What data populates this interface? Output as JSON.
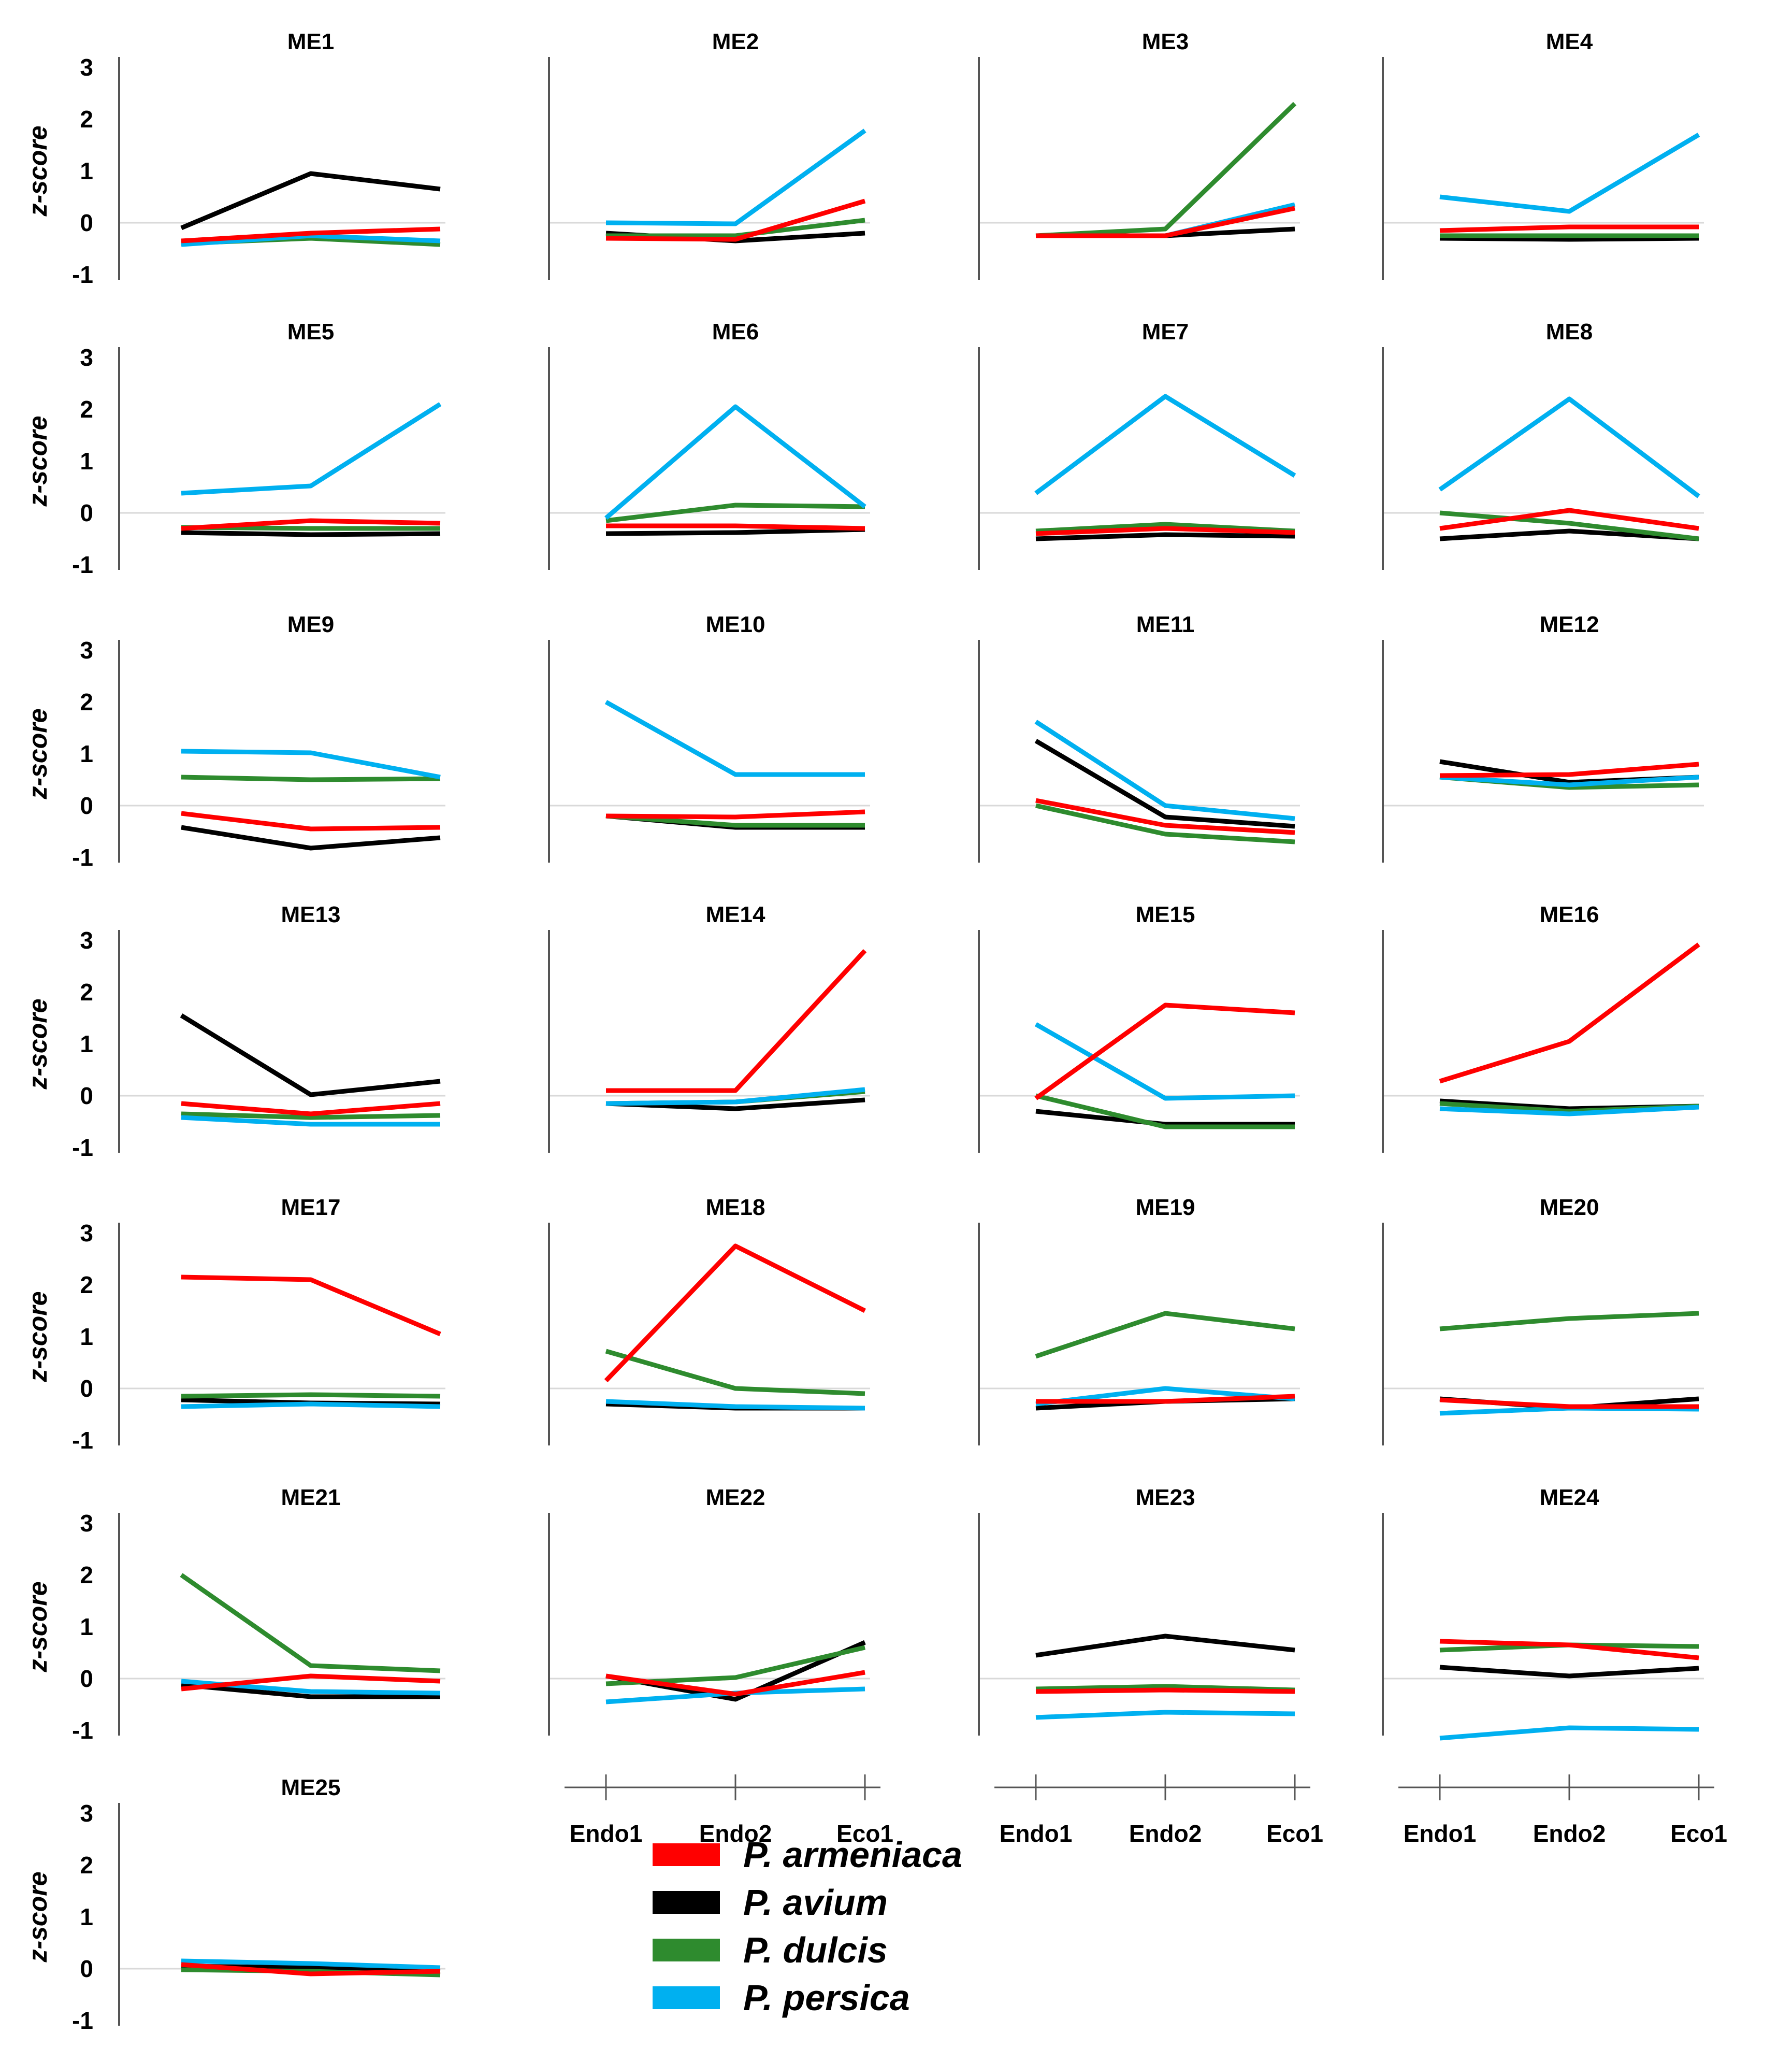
{
  "colors": {
    "P. armeniaca": "#ff0000",
    "P. avium": "#000000",
    "P. dulcis": "#2e8b2e",
    "P. persica": "#00b0f0",
    "zero_line": "#d9d9d9",
    "axis": "#555555"
  },
  "chart_data": {
    "type": "line",
    "ylabel": "z-score",
    "ylim": [
      -1,
      3
    ],
    "yticks": [
      "3",
      "2",
      "1",
      "0",
      "-1"
    ],
    "categories": [
      "Endo1",
      "Endo2",
      "Eco1"
    ],
    "legend": {
      "position": "bottom-center",
      "entries": [
        "P. armeniaca",
        "P. avium",
        "P. dulcis",
        "P. persica"
      ]
    },
    "panels": [
      {
        "title": "ME1",
        "series": [
          {
            "name": "P. armeniaca",
            "values": [
              -0.35,
              -0.2,
              -0.12
            ]
          },
          {
            "name": "P. avium",
            "values": [
              -0.1,
              0.95,
              0.65
            ]
          },
          {
            "name": "P. dulcis",
            "values": [
              -0.4,
              -0.3,
              -0.42
            ]
          },
          {
            "name": "P. persica",
            "values": [
              -0.42,
              -0.25,
              -0.35
            ]
          }
        ]
      },
      {
        "title": "ME2",
        "series": [
          {
            "name": "P. armeniaca",
            "values": [
              -0.3,
              -0.32,
              0.42
            ]
          },
          {
            "name": "P. avium",
            "values": [
              -0.2,
              -0.35,
              -0.2
            ]
          },
          {
            "name": "P. dulcis",
            "values": [
              -0.25,
              -0.25,
              0.05
            ]
          },
          {
            "name": "P. persica",
            "values": [
              0.0,
              -0.02,
              1.78
            ]
          }
        ]
      },
      {
        "title": "ME3",
        "series": [
          {
            "name": "P. armeniaca",
            "values": [
              -0.25,
              -0.25,
              0.28
            ]
          },
          {
            "name": "P. avium",
            "values": [
              -0.25,
              -0.25,
              -0.12
            ]
          },
          {
            "name": "P. dulcis",
            "values": [
              -0.25,
              -0.12,
              2.3
            ]
          },
          {
            "name": "P. persica",
            "values": [
              -0.25,
              -0.25,
              0.35
            ]
          }
        ]
      },
      {
        "title": "ME4",
        "series": [
          {
            "name": "P. armeniaca",
            "values": [
              -0.15,
              -0.08,
              -0.08
            ]
          },
          {
            "name": "P. avium",
            "values": [
              -0.3,
              -0.32,
              -0.3
            ]
          },
          {
            "name": "P. dulcis",
            "values": [
              -0.25,
              -0.25,
              -0.25
            ]
          },
          {
            "name": "P. persica",
            "values": [
              0.5,
              0.22,
              1.7
            ]
          }
        ]
      },
      {
        "title": "ME5",
        "series": [
          {
            "name": "P. armeniaca",
            "values": [
              -0.3,
              -0.15,
              -0.2
            ]
          },
          {
            "name": "P. avium",
            "values": [
              -0.38,
              -0.42,
              -0.4
            ]
          },
          {
            "name": "P. dulcis",
            "values": [
              -0.28,
              -0.3,
              -0.3
            ]
          },
          {
            "name": "P. persica",
            "values": [
              0.38,
              0.52,
              2.1
            ]
          }
        ]
      },
      {
        "title": "ME6",
        "series": [
          {
            "name": "P. armeniaca",
            "values": [
              -0.25,
              -0.25,
              -0.3
            ]
          },
          {
            "name": "P. avium",
            "values": [
              -0.4,
              -0.38,
              -0.32
            ]
          },
          {
            "name": "P. dulcis",
            "values": [
              -0.15,
              0.15,
              0.12
            ]
          },
          {
            "name": "P. persica",
            "values": [
              -0.1,
              2.05,
              0.12
            ]
          }
        ]
      },
      {
        "title": "ME7",
        "series": [
          {
            "name": "P. armeniaca",
            "values": [
              -0.4,
              -0.3,
              -0.38
            ]
          },
          {
            "name": "P. avium",
            "values": [
              -0.5,
              -0.42,
              -0.45
            ]
          },
          {
            "name": "P. dulcis",
            "values": [
              -0.35,
              -0.22,
              -0.35
            ]
          },
          {
            "name": "P. persica",
            "values": [
              0.38,
              2.25,
              0.72
            ]
          }
        ]
      },
      {
        "title": "ME8",
        "series": [
          {
            "name": "P. armeniaca",
            "values": [
              -0.3,
              0.05,
              -0.3
            ]
          },
          {
            "name": "P. avium",
            "values": [
              -0.5,
              -0.35,
              -0.5
            ]
          },
          {
            "name": "P. dulcis",
            "values": [
              0.0,
              -0.2,
              -0.5
            ]
          },
          {
            "name": "P. persica",
            "values": [
              0.45,
              2.2,
              0.32
            ]
          }
        ]
      },
      {
        "title": "ME9",
        "series": [
          {
            "name": "P. armeniaca",
            "values": [
              -0.15,
              -0.45,
              -0.42
            ]
          },
          {
            "name": "P. avium",
            "values": [
              -0.42,
              -0.82,
              -0.62
            ]
          },
          {
            "name": "P. dulcis",
            "values": [
              0.55,
              0.5,
              0.52
            ]
          },
          {
            "name": "P. persica",
            "values": [
              1.05,
              1.02,
              0.55
            ]
          }
        ]
      },
      {
        "title": "ME10",
        "series": [
          {
            "name": "P. armeniaca",
            "values": [
              -0.2,
              -0.22,
              -0.12
            ]
          },
          {
            "name": "P. avium",
            "values": [
              -0.2,
              -0.42,
              -0.42
            ]
          },
          {
            "name": "P. dulcis",
            "values": [
              -0.2,
              -0.38,
              -0.38
            ]
          },
          {
            "name": "P. persica",
            "values": [
              2.0,
              0.6,
              0.6
            ]
          }
        ]
      },
      {
        "title": "ME11",
        "series": [
          {
            "name": "P. armeniaca",
            "values": [
              0.1,
              -0.38,
              -0.52
            ]
          },
          {
            "name": "P. avium",
            "values": [
              1.25,
              -0.22,
              -0.4
            ]
          },
          {
            "name": "P. dulcis",
            "values": [
              0.0,
              -0.55,
              -0.7
            ]
          },
          {
            "name": "P. persica",
            "values": [
              1.62,
              0.0,
              -0.25
            ]
          }
        ]
      },
      {
        "title": "ME12",
        "series": [
          {
            "name": "P. armeniaca",
            "values": [
              0.58,
              0.6,
              0.8
            ]
          },
          {
            "name": "P. avium",
            "values": [
              0.85,
              0.45,
              0.55
            ]
          },
          {
            "name": "P. dulcis",
            "values": [
              0.55,
              0.35,
              0.4
            ]
          },
          {
            "name": "P. persica",
            "values": [
              0.55,
              0.4,
              0.55
            ]
          }
        ]
      },
      {
        "title": "ME13",
        "series": [
          {
            "name": "P. armeniaca",
            "values": [
              -0.15,
              -0.35,
              -0.15
            ]
          },
          {
            "name": "P. avium",
            "values": [
              1.55,
              0.02,
              0.28
            ]
          },
          {
            "name": "P. dulcis",
            "values": [
              -0.35,
              -0.42,
              -0.38
            ]
          },
          {
            "name": "P. persica",
            "values": [
              -0.42,
              -0.55,
              -0.55
            ]
          }
        ]
      },
      {
        "title": "ME14",
        "series": [
          {
            "name": "P. armeniaca",
            "values": [
              0.1,
              0.1,
              2.8
            ]
          },
          {
            "name": "P. avium",
            "values": [
              -0.15,
              -0.25,
              -0.08
            ]
          },
          {
            "name": "P. dulcis",
            "values": [
              -0.15,
              -0.12,
              0.08
            ]
          },
          {
            "name": "P. persica",
            "values": [
              -0.15,
              -0.12,
              0.12
            ]
          }
        ]
      },
      {
        "title": "ME15",
        "series": [
          {
            "name": "P. armeniaca",
            "values": [
              -0.05,
              1.75,
              1.6
            ]
          },
          {
            "name": "P. avium",
            "values": [
              -0.3,
              -0.55,
              -0.55
            ]
          },
          {
            "name": "P. dulcis",
            "values": [
              0.0,
              -0.6,
              -0.6
            ]
          },
          {
            "name": "P. persica",
            "values": [
              1.38,
              -0.05,
              0.0
            ]
          }
        ]
      },
      {
        "title": "ME16",
        "series": [
          {
            "name": "P. armeniaca",
            "values": [
              0.28,
              1.05,
              2.92
            ]
          },
          {
            "name": "P. avium",
            "values": [
              -0.1,
              -0.25,
              -0.2
            ]
          },
          {
            "name": "P. dulcis",
            "values": [
              -0.15,
              -0.3,
              -0.2
            ]
          },
          {
            "name": "P. persica",
            "values": [
              -0.25,
              -0.35,
              -0.22
            ]
          }
        ]
      },
      {
        "title": "ME17",
        "series": [
          {
            "name": "P. armeniaca",
            "values": [
              2.15,
              2.1,
              1.05
            ]
          },
          {
            "name": "P. avium",
            "values": [
              -0.22,
              -0.28,
              -0.3
            ]
          },
          {
            "name": "P. dulcis",
            "values": [
              -0.15,
              -0.12,
              -0.15
            ]
          },
          {
            "name": "P. persica",
            "values": [
              -0.35,
              -0.3,
              -0.35
            ]
          }
        ]
      },
      {
        "title": "ME18",
        "series": [
          {
            "name": "P. armeniaca",
            "values": [
              0.15,
              2.75,
              1.5
            ]
          },
          {
            "name": "P. avium",
            "values": [
              -0.3,
              -0.38,
              -0.38
            ]
          },
          {
            "name": "P. dulcis",
            "values": [
              0.72,
              0.0,
              -0.1
            ]
          },
          {
            "name": "P. persica",
            "values": [
              -0.25,
              -0.35,
              -0.38
            ]
          }
        ]
      },
      {
        "title": "ME19",
        "series": [
          {
            "name": "P. armeniaca",
            "values": [
              -0.25,
              -0.25,
              -0.15
            ]
          },
          {
            "name": "P. avium",
            "values": [
              -0.38,
              -0.25,
              -0.2
            ]
          },
          {
            "name": "P. dulcis",
            "values": [
              0.62,
              1.45,
              1.15
            ]
          },
          {
            "name": "P. persica",
            "values": [
              -0.3,
              0.0,
              -0.2
            ]
          }
        ]
      },
      {
        "title": "ME20",
        "series": [
          {
            "name": "P. armeniaca",
            "values": [
              -0.22,
              -0.35,
              -0.35
            ]
          },
          {
            "name": "P. avium",
            "values": [
              -0.2,
              -0.38,
              -0.2
            ]
          },
          {
            "name": "P. dulcis",
            "values": [
              1.15,
              1.35,
              1.45
            ]
          },
          {
            "name": "P. persica",
            "values": [
              -0.48,
              -0.38,
              -0.4
            ]
          }
        ]
      },
      {
        "title": "ME21",
        "series": [
          {
            "name": "P. armeniaca",
            "values": [
              -0.2,
              0.05,
              -0.05
            ]
          },
          {
            "name": "P. avium",
            "values": [
              -0.12,
              -0.35,
              -0.35
            ]
          },
          {
            "name": "P. dulcis",
            "values": [
              2.0,
              0.25,
              0.15
            ]
          },
          {
            "name": "P. persica",
            "values": [
              -0.05,
              -0.25,
              -0.28
            ]
          }
        ]
      },
      {
        "title": "ME22",
        "series": [
          {
            "name": "P. armeniaca",
            "values": [
              0.05,
              -0.3,
              0.12
            ]
          },
          {
            "name": "P. avium",
            "values": [
              0.05,
              -0.4,
              0.7
            ]
          },
          {
            "name": "P. dulcis",
            "values": [
              -0.1,
              0.02,
              0.6
            ]
          },
          {
            "name": "P. persica",
            "values": [
              -0.45,
              -0.28,
              -0.2
            ]
          }
        ]
      },
      {
        "title": "ME23",
        "series": [
          {
            "name": "P. armeniaca",
            "values": [
              -0.25,
              -0.22,
              -0.25
            ]
          },
          {
            "name": "P. avium",
            "values": [
              0.45,
              0.82,
              0.55
            ]
          },
          {
            "name": "P. dulcis",
            "values": [
              -0.2,
              -0.15,
              -0.22
            ]
          },
          {
            "name": "P. persica",
            "values": [
              -0.75,
              -0.65,
              -0.68
            ]
          }
        ]
      },
      {
        "title": "ME24",
        "series": [
          {
            "name": "P. armeniaca",
            "values": [
              0.72,
              0.65,
              0.4
            ]
          },
          {
            "name": "P. avium",
            "values": [
              0.22,
              0.05,
              0.2
            ]
          },
          {
            "name": "P. dulcis",
            "values": [
              0.55,
              0.65,
              0.62
            ]
          },
          {
            "name": "P. persica",
            "values": [
              -1.15,
              -0.95,
              -0.98
            ]
          }
        ]
      },
      {
        "title": "ME25",
        "series": [
          {
            "name": "P. armeniaca",
            "values": [
              0.08,
              -0.1,
              -0.05
            ]
          },
          {
            "name": "P. avium",
            "values": [
              0.05,
              0.02,
              -0.05
            ]
          },
          {
            "name": "P. dulcis",
            "values": [
              -0.02,
              -0.05,
              -0.12
            ]
          },
          {
            "name": "P. persica",
            "values": [
              0.15,
              0.1,
              0.02
            ]
          }
        ]
      }
    ]
  }
}
